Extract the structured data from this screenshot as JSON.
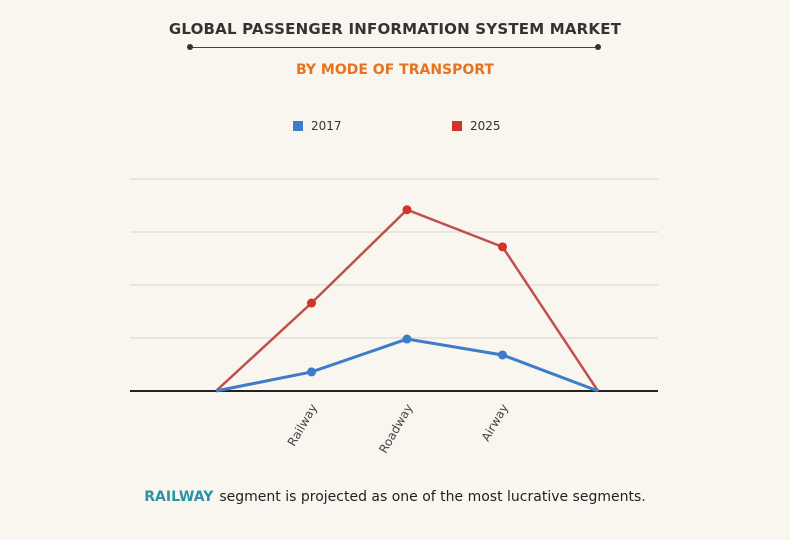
{
  "header": {
    "title": "GLOBAL  PASSENGER INFORMATION SYSTEM MARKET",
    "subtitle": "BY MODE OF TRANSPORT"
  },
  "footer": {
    "highlight": "RAILWAY",
    "text": "segment is projected as one of the most lucrative segments."
  },
  "colors": {
    "2017": "#3d7cc9",
    "2025": "#c0504d",
    "accent": "#e8731f",
    "highlight": "#2a93a8"
  },
  "chart_data": {
    "type": "line",
    "title": "GLOBAL  PASSENGER INFORMATION SYSTEM MARKET",
    "subtitle": "BY MODE OF TRANSPORT",
    "categories": [
      "",
      "Railway",
      "Roadway",
      "Airway",
      ""
    ],
    "series": [
      {
        "name": "2017",
        "values": [
          0,
          0.36,
          0.98,
          0.68,
          0
        ]
      },
      {
        "name": "2025",
        "values": [
          0,
          1.66,
          3.42,
          2.72,
          0
        ]
      }
    ],
    "ylim": [
      0,
      4
    ],
    "grid": true,
    "legend": "top"
  }
}
